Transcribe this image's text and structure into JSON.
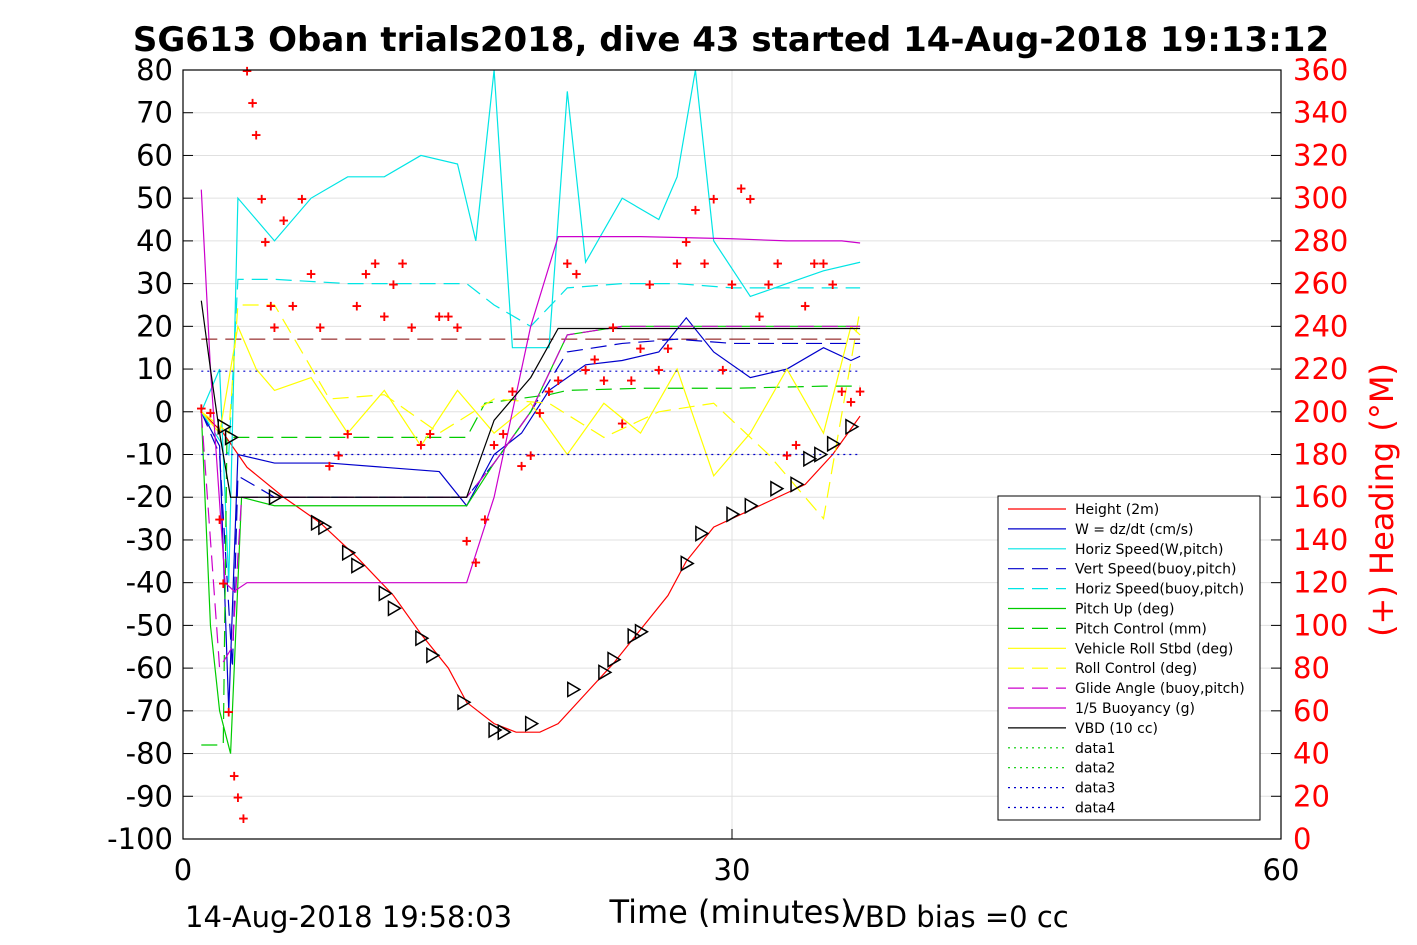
{
  "chart_data": {
    "type": "line",
    "title": "SG613 Oban trials2018, dive 43 started 14-Aug-2018 19:13:12",
    "xlabel": "Time (minutes)",
    "ylabel_right": "(+) Heading (°M)",
    "xlim": [
      0,
      60
    ],
    "ylim_left": [
      -100,
      80
    ],
    "ylim_right": [
      0,
      360
    ],
    "xticks": [
      0,
      30,
      60
    ],
    "yticks_left": [
      80,
      70,
      60,
      50,
      40,
      30,
      20,
      10,
      0,
      -10,
      -20,
      -30,
      -40,
      -50,
      -60,
      -70,
      -80,
      -90,
      -100
    ],
    "yticks_right": [
      360,
      340,
      320,
      300,
      280,
      260,
      240,
      220,
      200,
      180,
      160,
      140,
      120,
      100,
      80,
      60,
      40,
      20,
      0
    ],
    "grid": true,
    "legend_position": "lower-right",
    "footer_left": "14-Aug-2018 19:58:03",
    "footer_right": "VBD bias =0 cc",
    "colors": {
      "red": "#ff0000",
      "blue": "#0000cc",
      "cyan": "#00e5e5",
      "green": "#00cc00",
      "yellow": "#ffff00",
      "magenta": "#cc00cc",
      "black": "#000000",
      "darkred": "#800000"
    },
    "series": [
      {
        "name": "Height (2m)",
        "color": "#ff0000",
        "dash": "solid",
        "x": [
          1,
          2.2,
          3.5,
          5.5,
          7.5,
          9.5,
          11.5,
          13,
          14.5,
          15.5,
          17,
          18.2,
          19.5,
          20.5,
          22,
          23.5,
          25,
          26.5,
          27.5,
          29,
          30.5,
          32,
          34,
          35.5,
          36.5,
          37
        ],
        "y": [
          0,
          -5,
          -13,
          -20,
          -26,
          -34,
          -43,
          -52,
          -60,
          -68,
          -73,
          -75,
          -75,
          -73,
          -66,
          -59,
          -51,
          -43,
          -35,
          -27,
          -24,
          -21,
          -17,
          -10,
          -4,
          -1
        ]
      },
      {
        "name": "W = dz/dt (cm/s)",
        "color": "#0000cc",
        "dash": "solid",
        "x": [
          1,
          2,
          2.5,
          3,
          5,
          8,
          11,
          14,
          15.5,
          17,
          18.5,
          20,
          22,
          24,
          26,
          27.5,
          29,
          31,
          33,
          35,
          36.5,
          37
        ],
        "y": [
          0,
          -8,
          -70,
          -10,
          -12,
          -12,
          -13,
          -14,
          -22,
          -10,
          -5,
          5,
          11,
          12,
          14,
          22,
          14,
          8,
          10,
          15,
          12,
          13
        ]
      },
      {
        "name": "Horiz Speed(W,pitch)",
        "color": "#00e5e5",
        "dash": "solid",
        "x": [
          1,
          2,
          2.5,
          3,
          4,
          5,
          7,
          9,
          11,
          13,
          15,
          16,
          17,
          18,
          19,
          20,
          21,
          22,
          24,
          26,
          27,
          28,
          29,
          31,
          33,
          35,
          37
        ],
        "y": [
          0,
          10,
          -40,
          50,
          45,
          40,
          50,
          55,
          55,
          60,
          58,
          40,
          80,
          15,
          15,
          15,
          75,
          35,
          50,
          45,
          55,
          80,
          40,
          27,
          30,
          33,
          35
        ]
      },
      {
        "name": "Vert Speed(buoy,pitch)",
        "color": "#0000cc",
        "dash": "long",
        "x": [
          1,
          2,
          2.7,
          3,
          5,
          9,
          13,
          15.5,
          17,
          19,
          21,
          24,
          27,
          30,
          33,
          36,
          37
        ],
        "y": [
          0,
          -10,
          -60,
          -15,
          -20,
          -20,
          -20,
          -20,
          -12,
          0,
          14,
          16,
          17,
          16,
          16,
          16,
          16
        ]
      },
      {
        "name": "Horiz Speed(buoy,pitch)",
        "color": "#00e5e5",
        "dash": "long",
        "x": [
          1,
          2.5,
          3,
          5,
          9,
          13,
          15.5,
          17,
          19,
          21,
          24,
          27,
          30,
          33,
          36,
          37
        ],
        "y": [
          0,
          -10,
          31,
          31,
          30,
          30,
          30,
          25,
          20,
          29,
          30,
          30,
          29,
          29,
          29,
          29
        ]
      },
      {
        "name": "Pitch Up (deg)",
        "color": "#00cc00",
        "dash": "solid",
        "x": [
          1,
          1.5,
          2,
          2.6,
          3.2,
          5,
          9,
          13,
          15.5,
          17,
          19,
          21,
          24,
          27,
          30,
          33,
          36,
          37
        ],
        "y": [
          0,
          -50,
          -70,
          -80,
          -20,
          -22,
          -22,
          -22,
          -22,
          -12,
          0,
          18,
          20,
          20,
          20,
          20,
          20,
          20
        ]
      },
      {
        "name": "Pitch Control (mm)",
        "color": "#00cc00",
        "dash": "long",
        "x": [
          1,
          2.2,
          2.4,
          5,
          10,
          15.5,
          16.5,
          20,
          21,
          25,
          30,
          35,
          37
        ],
        "y": [
          -78,
          -78,
          -6,
          -6,
          -6,
          -6,
          2,
          4,
          5,
          5.5,
          5.5,
          6,
          6
        ]
      },
      {
        "name": "Vehicle Roll Stbd (deg)",
        "color": "#ffff00",
        "dash": "solid",
        "x": [
          1,
          2,
          3,
          4,
          5,
          7,
          9,
          11,
          13,
          15,
          17,
          19,
          21,
          23,
          25,
          27,
          29,
          31,
          33,
          35,
          36.5,
          37
        ],
        "y": [
          0,
          -5,
          20,
          10,
          5,
          8,
          -5,
          5,
          -8,
          5,
          -5,
          2,
          -10,
          2,
          -5,
          10,
          -15,
          -5,
          10,
          -5,
          20,
          18
        ]
      },
      {
        "name": "Roll Control (deg)",
        "color": "#ffff00",
        "dash": "long",
        "x": [
          1,
          2.5,
          3,
          5,
          8,
          11,
          14,
          17,
          20,
          23,
          26,
          29,
          32,
          35,
          37
        ],
        "y": [
          0,
          -5,
          25,
          25,
          3,
          4,
          -5,
          3,
          2,
          -6,
          0,
          2,
          -10,
          -25,
          24
        ]
      },
      {
        "name": "Glide Angle (buoy,pitch)",
        "color": "#cc00cc",
        "dash": "long",
        "x": [
          1,
          2,
          2.7,
          3.2,
          5,
          9,
          13,
          15.5,
          17,
          19,
          21,
          24,
          27,
          30,
          33,
          36,
          37
        ],
        "y": [
          0,
          -60,
          -55,
          -20,
          -20,
          -20,
          -20,
          -20,
          -12,
          0,
          18,
          20,
          20,
          20,
          20,
          20,
          20
        ]
      },
      {
        "name": "1/5 Buoyancy (g)",
        "color": "#cc00cc",
        "dash": "solid",
        "x": [
          1,
          1.5,
          2.3,
          2.8,
          3.5,
          8,
          12,
          15.5,
          17,
          19,
          20.5,
          25,
          30,
          33,
          36,
          37
        ],
        "y": [
          52,
          10,
          -40,
          -42,
          -40,
          -40,
          -40,
          -40,
          -20,
          20,
          41,
          41,
          40.5,
          40,
          40,
          39.5
        ]
      },
      {
        "name": "VBD (10 cc)",
        "color": "#000000",
        "dash": "solid",
        "x": [
          1,
          1.5,
          2,
          2.6,
          5,
          10,
          15.5,
          17,
          19,
          20.5,
          25,
          30,
          35,
          37
        ],
        "y": [
          26,
          10,
          -5,
          -20,
          -20,
          -20,
          -20,
          -2,
          8,
          19.5,
          19.5,
          19.5,
          19.5,
          19.5
        ]
      },
      {
        "name": "data1",
        "color": "#00cc00",
        "dash": "dotted",
        "x": [],
        "y": []
      },
      {
        "name": "data2",
        "color": "#00cc00",
        "dash": "dotted",
        "x": [],
        "y": []
      },
      {
        "name": "data3",
        "color": "#0000cc",
        "dash": "dotted",
        "x": [
          1,
          37
        ],
        "y": [
          9.5,
          9.5
        ]
      },
      {
        "name": "data4",
        "color": "#0000cc",
        "dash": "dotted",
        "x": [
          1,
          37
        ],
        "y": [
          -10,
          -10
        ]
      }
    ],
    "reference_line": {
      "color": "#800000",
      "dash": "long",
      "x": [
        1,
        37
      ],
      "y": [
        17,
        17
      ]
    },
    "heading_markers": {
      "color": "#ff0000",
      "axis": "right",
      "x": [
        1,
        1.5,
        2,
        2.2,
        2.5,
        2.8,
        3,
        3.3,
        3.5,
        3.8,
        4,
        4.3,
        4.5,
        4.8,
        5,
        5.5,
        6,
        6.5,
        7,
        7.5,
        8,
        8.5,
        9,
        9.5,
        10,
        10.5,
        11,
        11.5,
        12,
        12.5,
        13,
        13.5,
        14,
        14.5,
        15,
        15.5,
        16,
        16.5,
        17,
        17.5,
        18,
        18.5,
        19,
        19.5,
        20,
        20.5,
        21,
        21.5,
        22,
        22.5,
        23,
        23.5,
        24,
        24.5,
        25,
        25.5,
        26,
        26.5,
        27,
        27.5,
        28,
        28.5,
        29,
        29.5,
        30,
        30.5,
        31,
        31.5,
        32,
        32.5,
        33,
        33.5,
        34,
        34.5,
        35,
        35.5,
        36,
        36.5,
        37
      ],
      "y": [
        202,
        200,
        150,
        120,
        60,
        30,
        20,
        10,
        360,
        345,
        330,
        300,
        280,
        250,
        240,
        290,
        250,
        300,
        265,
        240,
        175,
        180,
        190,
        250,
        265,
        270,
        245,
        260,
        270,
        240,
        185,
        190,
        245,
        245,
        240,
        140,
        130,
        150,
        185,
        190,
        210,
        175,
        180,
        200,
        210,
        215,
        270,
        265,
        220,
        225,
        215,
        240,
        195,
        215,
        230,
        260,
        220,
        230,
        270,
        280,
        295,
        270,
        300,
        220,
        260,
        305,
        300,
        245,
        260,
        270,
        180,
        185,
        250,
        270,
        270,
        260,
        210,
        205,
        210
      ]
    },
    "vbd_markers": {
      "color": "#000000",
      "shape": "triangle",
      "x": [
        2.2,
        2.6,
        5,
        7.3,
        7.7,
        9,
        9.5,
        11,
        11.5,
        13,
        13.6,
        15.3,
        17,
        17.5,
        19,
        21.3,
        23,
        23.5,
        24.6,
        25,
        27.5,
        28.3,
        30,
        31,
        32.4,
        33.5,
        34.2,
        34.8,
        35.5,
        36.5
      ],
      "y": [
        -3.5,
        -6,
        -20,
        -26,
        -27,
        -33,
        -36,
        -42.5,
        -46,
        -53,
        -57,
        -68,
        -74.5,
        -75,
        -73,
        -65,
        -61,
        -58,
        -52.5,
        -51.5,
        -35.5,
        -28.5,
        -24,
        -22,
        -18,
        -17,
        -11,
        -10,
        -7.5,
        -3.5
      ]
    }
  }
}
